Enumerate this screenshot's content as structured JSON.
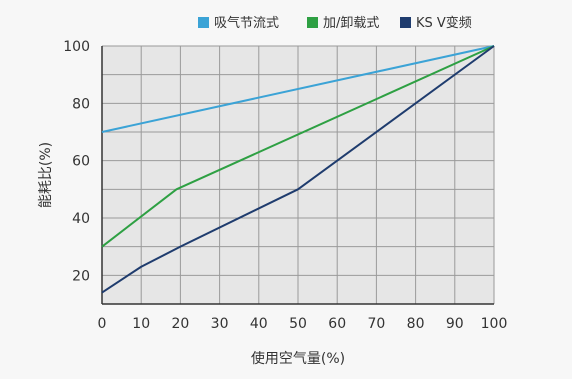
{
  "chart_data": {
    "type": "line",
    "title": "",
    "xlabel": "使用空气量(%)",
    "ylabel": "能耗比(%)",
    "xlim": [
      0,
      100
    ],
    "ylim": [
      10,
      100
    ],
    "x_ticks": [
      "0",
      "10",
      "20",
      "30",
      "40",
      "50",
      "60",
      "70",
      "80",
      "90",
      "100"
    ],
    "y_ticks": [
      "20",
      "40",
      "60",
      "80",
      "100"
    ],
    "x_tick_values": [
      0,
      10,
      20,
      30,
      40,
      50,
      60,
      70,
      80,
      90,
      100
    ],
    "y_tick_values": [
      20,
      40,
      60,
      80,
      100
    ],
    "grid": true,
    "legend_position": "top-right",
    "series": [
      {
        "name": "吸气节流式",
        "color": "#3ba3d6",
        "x": [
          0,
          100
        ],
        "y": [
          70,
          100
        ]
      },
      {
        "name": "加/卸载式",
        "color": "#2ea043",
        "x": [
          0,
          19,
          100
        ],
        "y": [
          30,
          50,
          100
        ]
      },
      {
        "name": "KS V变频",
        "color": "#1f3c6e",
        "x": [
          0,
          10,
          20,
          50,
          100
        ],
        "y": [
          14,
          23,
          30,
          50,
          100
        ]
      }
    ]
  }
}
